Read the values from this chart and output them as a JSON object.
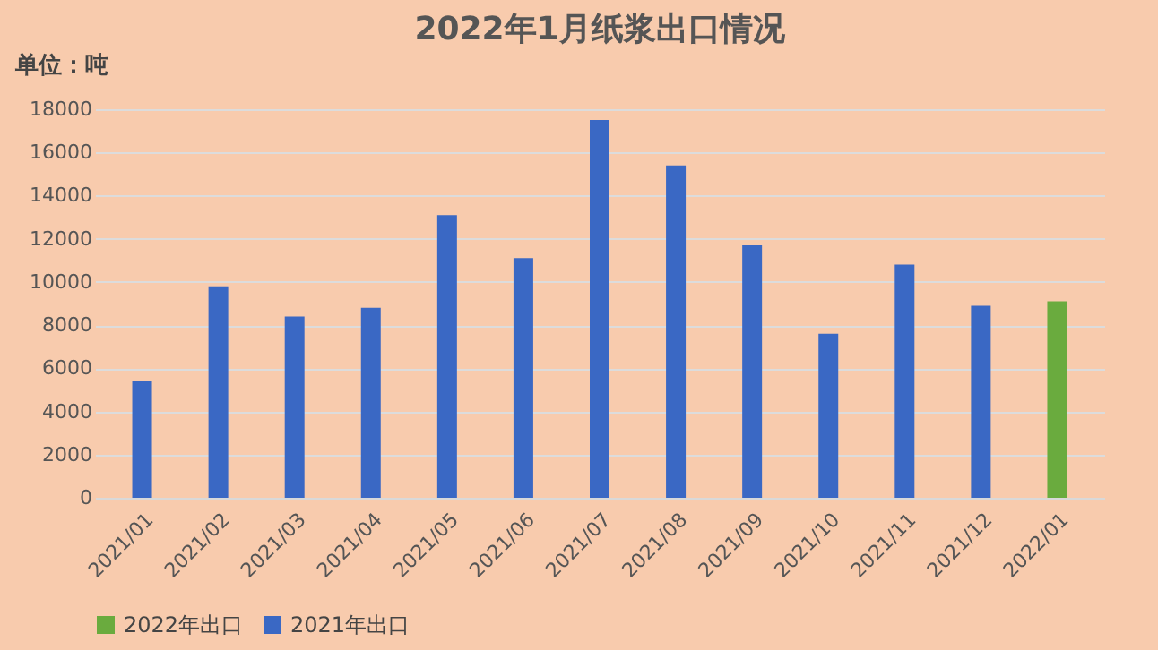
{
  "chart_data": {
    "type": "bar",
    "title": "2022年1月纸浆出口情况",
    "ylabel": "单位：吨",
    "categories": [
      "2021/01",
      "2021/02",
      "2021/03",
      "2021/04",
      "2021/05",
      "2021/06",
      "2021/07",
      "2021/08",
      "2021/09",
      "2021/10",
      "2021/11",
      "2021/12",
      "2022/01"
    ],
    "series": [
      {
        "name": "2022年出口",
        "color": "#6aab3e",
        "values": [
          null,
          null,
          null,
          null,
          null,
          null,
          null,
          null,
          null,
          null,
          null,
          null,
          9100
        ]
      },
      {
        "name": "2021年出口",
        "color": "#3a68c4",
        "values": [
          5400,
          9800,
          8400,
          8800,
          13100,
          11100,
          17500,
          15400,
          11700,
          7600,
          10800,
          8900,
          null
        ]
      }
    ],
    "ylim": [
      0,
      18000
    ],
    "yticks": [
      0,
      2000,
      4000,
      6000,
      8000,
      10000,
      12000,
      14000,
      16000,
      18000
    ],
    "grid": "y",
    "legend": "bottom"
  }
}
